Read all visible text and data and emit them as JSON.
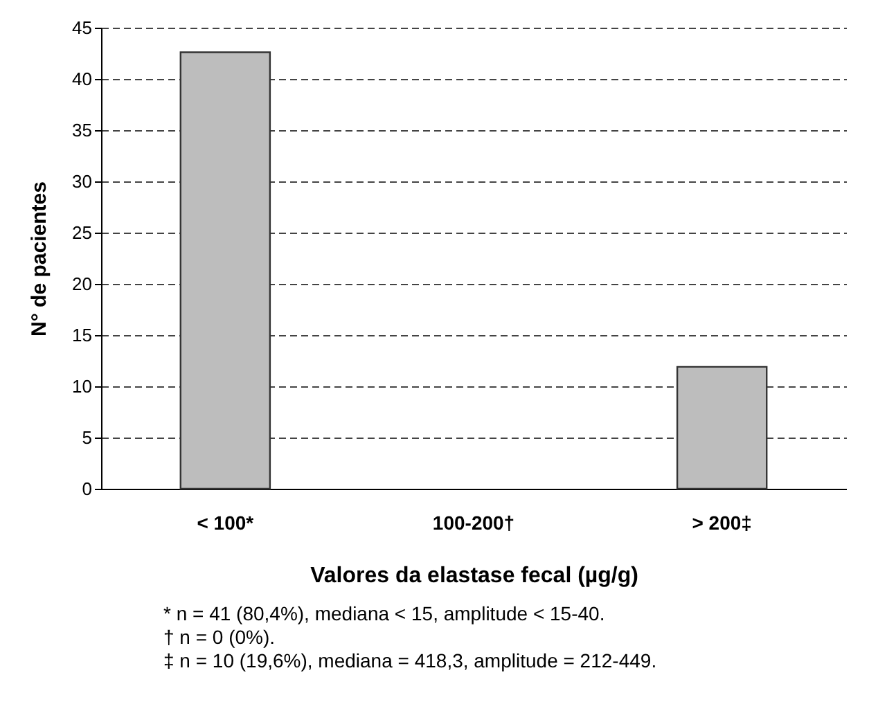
{
  "chart_data": {
    "type": "bar",
    "xlabel": "Valores da elastase fecal (µg/g)",
    "ylabel": "N° de pacientes",
    "categories": [
      "< 100*",
      "100-200†",
      "> 200‡"
    ],
    "values": [
      42.6,
      0,
      11.9
    ],
    "color": "#bdbdbd",
    "ylim": [
      0,
      45
    ],
    "yticks": [
      0,
      5,
      10,
      15,
      20,
      25,
      30,
      35,
      40,
      45
    ],
    "grid": "y",
    "annotations": [
      "*  n = 41 (80,4%), mediana < 15, amplitude < 15-40.",
      "†  n = 0 (0%).",
      "‡  n = 10 (19,6%), mediana = 418,3, amplitude = 212-449."
    ]
  }
}
